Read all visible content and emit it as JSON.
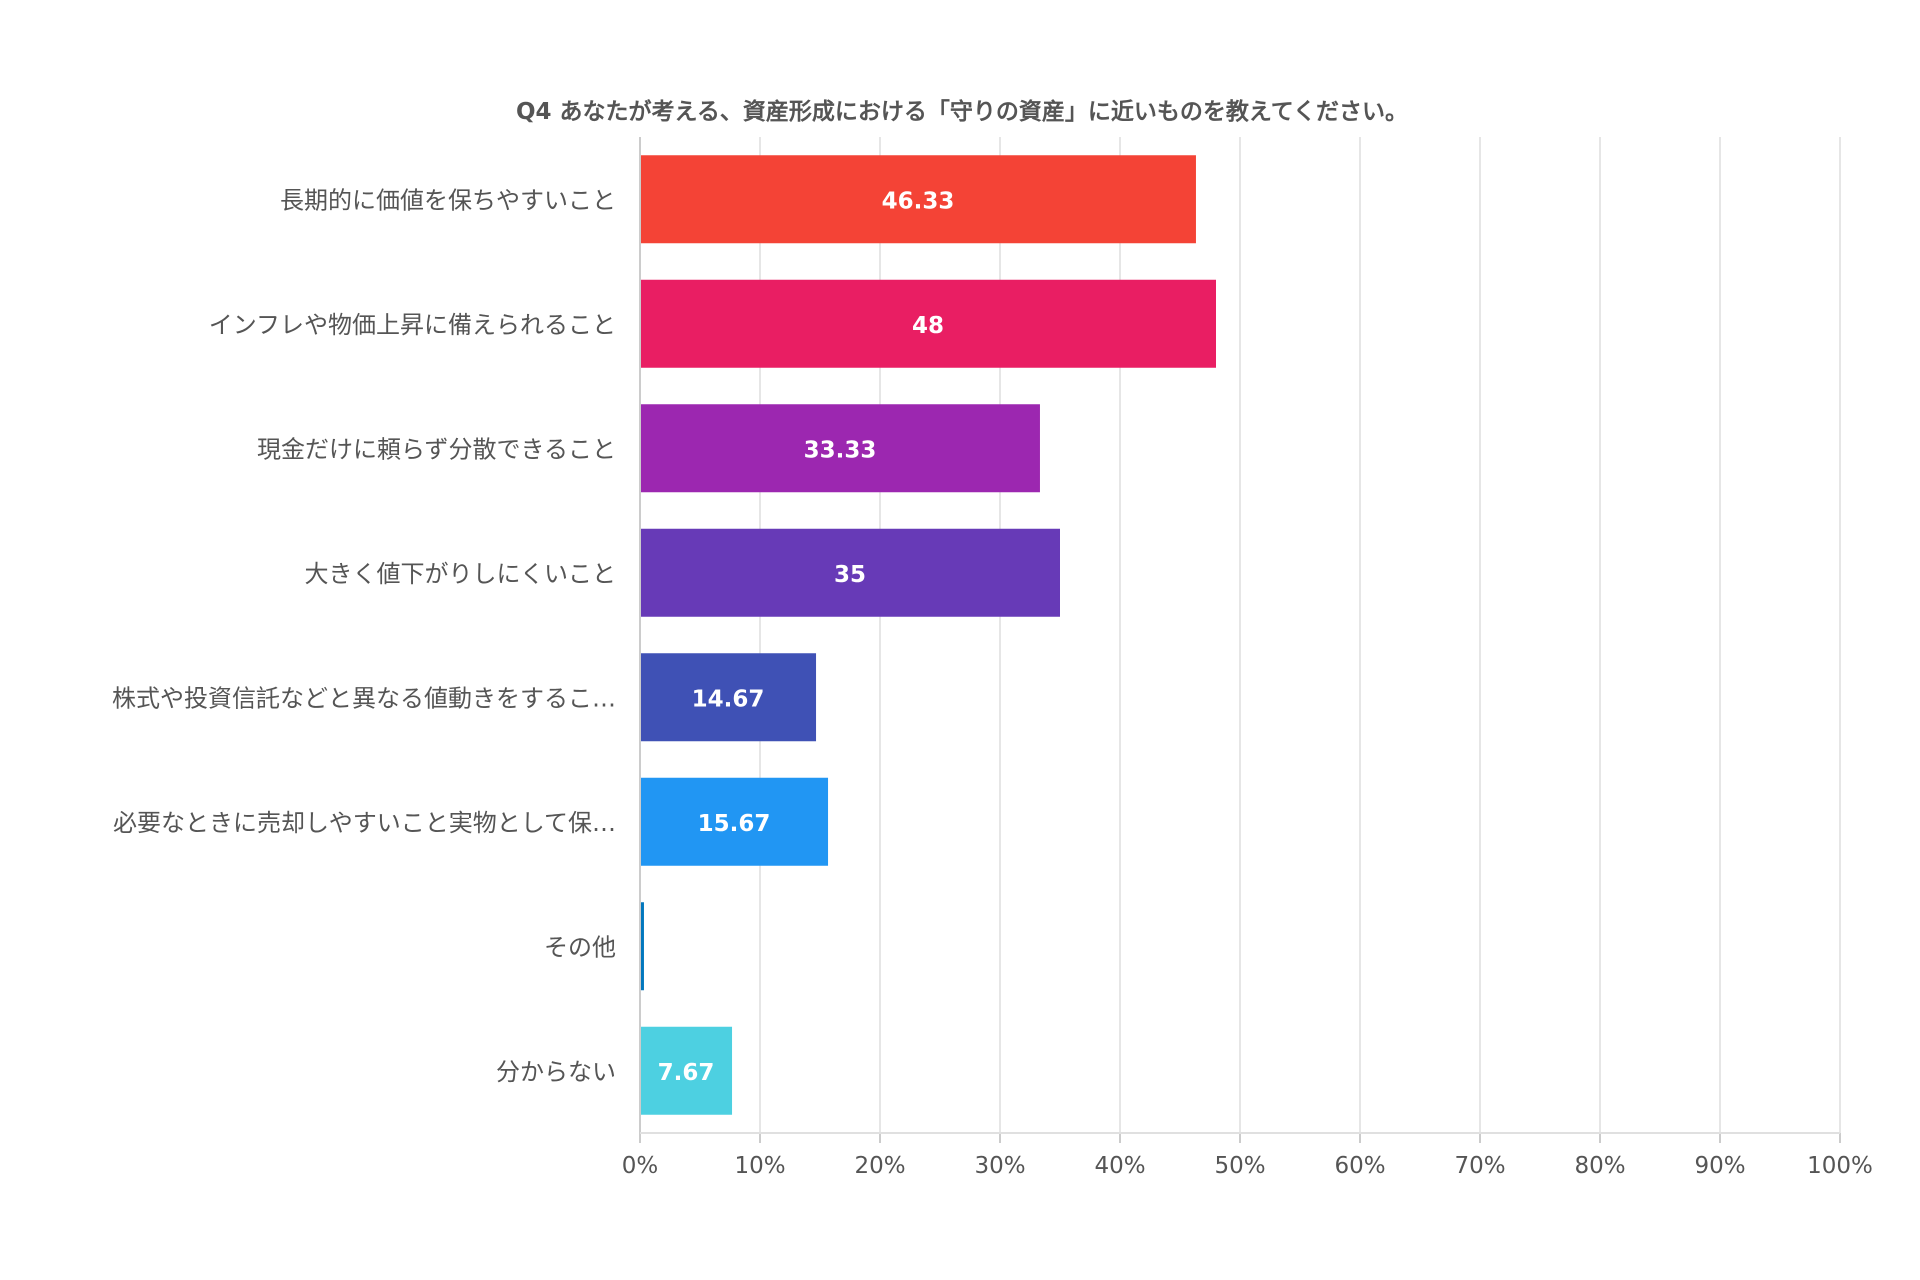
{
  "chart_data": {
    "type": "bar",
    "orientation": "horizontal",
    "title": "Q4 あなたが考える、資産形成における「守りの資産」に近いものを教えてください。",
    "categories": [
      "長期的に価値を保ちやすいこと",
      "インフレや物価上昇に備えられること",
      "現金だけに頼らず分散できること",
      "大きく値下がりしにくいこと",
      "株式や投資信託などと異なる値動きをするこ…",
      "必要なときに売却しやすいこと実物として保…",
      "その他",
      "分からない"
    ],
    "values": [
      46.33,
      48,
      33.33,
      35,
      14.67,
      15.67,
      0.33,
      7.67
    ],
    "value_labels": [
      "46.33",
      "48",
      "33.33",
      "35",
      "14.67",
      "15.67",
      "",
      "7.67"
    ],
    "colors": [
      "#f44336",
      "#e91e63",
      "#9c27b0",
      "#673ab7",
      "#3f51b5",
      "#2196f3",
      "#0277bd",
      "#4dd0e1"
    ],
    "xlim": [
      0,
      100
    ],
    "xticks": [
      0,
      10,
      20,
      30,
      40,
      50,
      60,
      70,
      80,
      90,
      100
    ],
    "xtick_labels": [
      "0%",
      "10%",
      "20%",
      "30%",
      "40%",
      "50%",
      "60%",
      "70%",
      "80%",
      "90%",
      "100%"
    ],
    "grid": true,
    "legend": "none"
  }
}
